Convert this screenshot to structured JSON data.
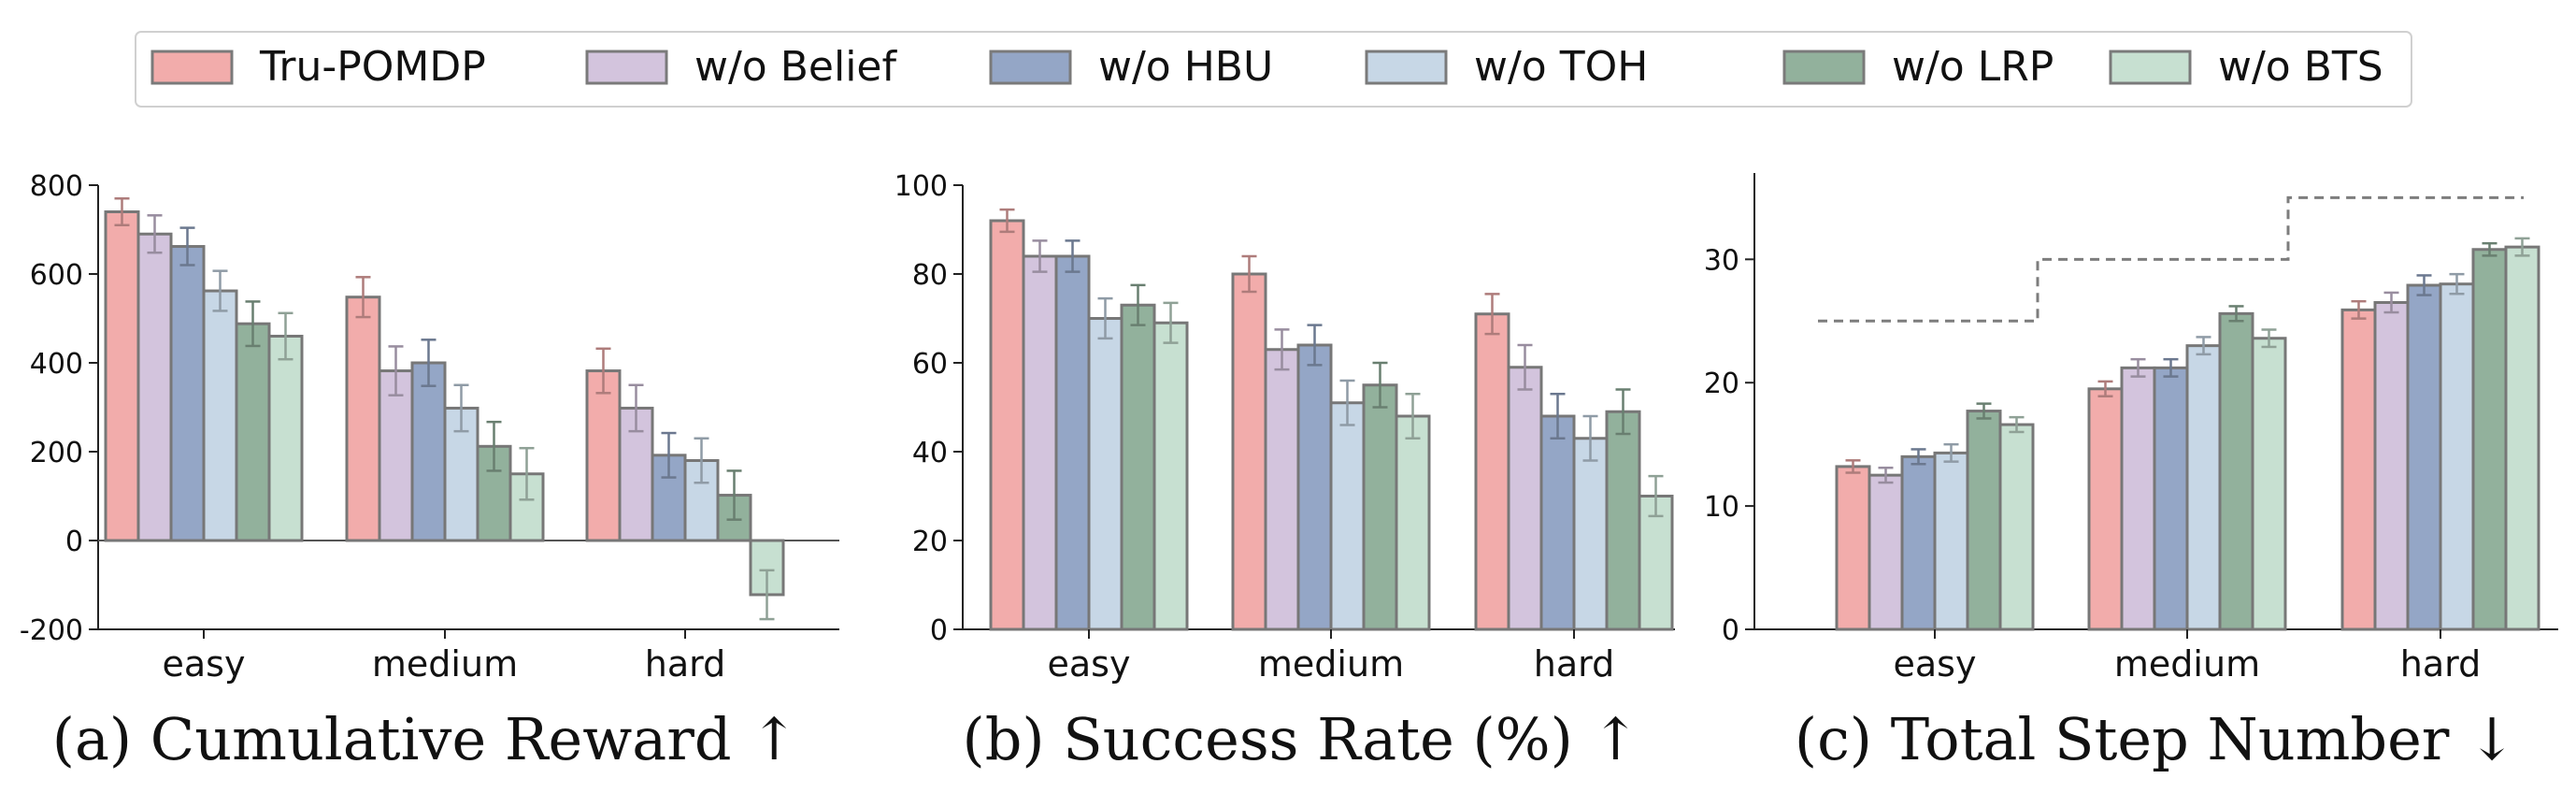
{
  "legend": [
    {
      "name": "Tru-POMDP",
      "color": "#f2acab"
    },
    {
      "name": "w/o Belief",
      "color": "#d3c4dd"
    },
    {
      "name": "w/o HBU",
      "color": "#94a6c6"
    },
    {
      "name": "w/o TOH",
      "color": "#c7d7e6"
    },
    {
      "name": "w/o LRP",
      "color": "#92b19c"
    },
    {
      "name": "w/o BTS",
      "color": "#c7e0d1"
    }
  ],
  "chart_data": [
    {
      "type": "bar",
      "title": "(a) Cumulative Reward ↑",
      "categories": [
        "easy",
        "medium",
        "hard"
      ],
      "ylim": [
        -200,
        800
      ],
      "yticks": [
        -200,
        0,
        200,
        400,
        600,
        800
      ],
      "series": [
        {
          "name": "Tru-POMDP",
          "values": [
            740,
            548,
            382
          ],
          "errors": [
            30,
            45,
            50
          ]
        },
        {
          "name": "w/o Belief",
          "values": [
            690,
            382,
            298
          ],
          "errors": [
            42,
            55,
            52
          ]
        },
        {
          "name": "w/o HBU",
          "values": [
            662,
            400,
            192
          ],
          "errors": [
            42,
            52,
            50
          ]
        },
        {
          "name": "w/o TOH",
          "values": [
            562,
            298,
            180
          ],
          "errors": [
            45,
            52,
            50
          ]
        },
        {
          "name": "w/o LRP",
          "values": [
            488,
            212,
            102
          ],
          "errors": [
            50,
            55,
            55
          ]
        },
        {
          "name": "w/o BTS",
          "values": [
            460,
            150,
            -122
          ],
          "errors": [
            52,
            58,
            55
          ]
        }
      ],
      "zero_line": true
    },
    {
      "type": "bar",
      "title": "(b) Success Rate (%) ↑",
      "categories": [
        "easy",
        "medium",
        "hard"
      ],
      "ylim": [
        0,
        100
      ],
      "yticks": [
        0,
        20,
        40,
        60,
        80,
        100
      ],
      "series": [
        {
          "name": "Tru-POMDP",
          "values": [
            92,
            80,
            71
          ],
          "errors": [
            2.5,
            4,
            4.5
          ]
        },
        {
          "name": "w/o Belief",
          "values": [
            84,
            63,
            59
          ],
          "errors": [
            3.5,
            4.5,
            5
          ]
        },
        {
          "name": "w/o HBU",
          "values": [
            84,
            64,
            48
          ],
          "errors": [
            3.5,
            4.5,
            5
          ]
        },
        {
          "name": "w/o TOH",
          "values": [
            70,
            51,
            43
          ],
          "errors": [
            4.5,
            5,
            5
          ]
        },
        {
          "name": "w/o LRP",
          "values": [
            73,
            55,
            49
          ],
          "errors": [
            4.5,
            5,
            5
          ]
        },
        {
          "name": "w/o BTS",
          "values": [
            69,
            48,
            30
          ],
          "errors": [
            4.5,
            5,
            4.5
          ]
        }
      ]
    },
    {
      "type": "bar",
      "title": "(c) Total Step Number ↓",
      "categories": [
        "easy",
        "medium",
        "hard"
      ],
      "ylim": [
        0,
        37
      ],
      "yticks": [
        0,
        10,
        20,
        30
      ],
      "series": [
        {
          "name": "Tru-POMDP",
          "values": [
            13.2,
            19.5,
            25.9
          ],
          "errors": [
            0.5,
            0.6,
            0.7
          ]
        },
        {
          "name": "w/o Belief",
          "values": [
            12.5,
            21.2,
            26.5
          ],
          "errors": [
            0.6,
            0.7,
            0.8
          ]
        },
        {
          "name": "w/o HBU",
          "values": [
            14.0,
            21.2,
            27.9
          ],
          "errors": [
            0.6,
            0.7,
            0.8
          ]
        },
        {
          "name": "w/o TOH",
          "values": [
            14.3,
            23.0,
            28.0
          ],
          "errors": [
            0.7,
            0.7,
            0.8
          ]
        },
        {
          "name": "w/o LRP",
          "values": [
            17.7,
            25.6,
            30.8
          ],
          "errors": [
            0.6,
            0.6,
            0.5
          ]
        },
        {
          "name": "w/o BTS",
          "values": [
            16.6,
            23.6,
            31.0
          ],
          "errors": [
            0.6,
            0.7,
            0.7
          ]
        }
      ],
      "step_limits": [
        25,
        30,
        35
      ]
    }
  ]
}
